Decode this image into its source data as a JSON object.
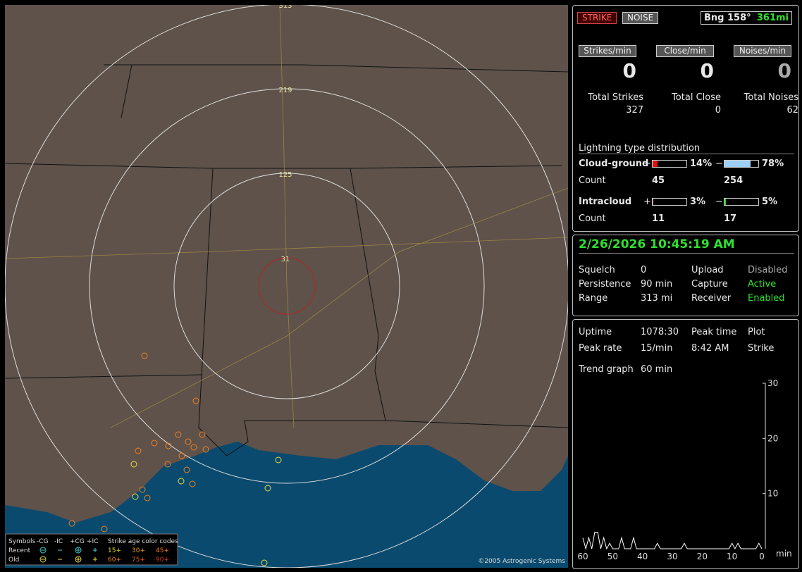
{
  "map": {
    "range_rings": [
      "313",
      "219",
      "125",
      "31"
    ],
    "copyright": "©2005 Astrogenic Systems",
    "legend": {
      "symbols": "Symbols",
      "types": [
        "-CG",
        "-IC",
        "+CG",
        "+IC"
      ],
      "age_title": "Strike age color codes",
      "rows": [
        "Recent",
        "Old"
      ],
      "recent_ages": [
        "15+",
        "30+",
        "45+"
      ],
      "old_ages": [
        "60+",
        "75+",
        "90+"
      ]
    }
  },
  "status": {
    "buttons": [
      "STRIKE",
      "NOISE"
    ],
    "bearing": "Bng 158°",
    "distance": "361mi",
    "rates": [
      {
        "label": "Strikes/min",
        "value": 0
      },
      {
        "label": "Close/min",
        "value": 0
      },
      {
        "label": "Noises/min",
        "value": 0
      }
    ],
    "totals": [
      {
        "label": "Total Strikes",
        "value": 327
      },
      {
        "label": "Total Close",
        "value": 0
      },
      {
        "label": "Total Noises",
        "value": 62
      }
    ],
    "distribution": {
      "title": "Lightning type distribution",
      "count_label": "Count",
      "rows": [
        {
          "name": "Cloud-ground",
          "plus": {
            "sign": "+",
            "percent": 14,
            "percent_label": "14%",
            "count": 45,
            "color": "#e01010"
          },
          "minus": {
            "sign": "−",
            "percent": 78,
            "percent_label": "78%",
            "count": 254,
            "color": "#9cd0f4"
          }
        },
        {
          "name": "Intracloud",
          "plus": {
            "sign": "+",
            "percent": 3,
            "percent_label": "3%",
            "count": 11,
            "color": "#e070a0"
          },
          "minus": {
            "sign": "−",
            "percent": 5,
            "percent_label": "5%",
            "count": 17,
            "color": "#20d020"
          }
        }
      ]
    }
  },
  "settings": {
    "datetime": "2/26/2026 10:45:19 AM",
    "left": [
      {
        "label": "Squelch",
        "value": 0
      },
      {
        "label": "Persistence",
        "value": "90 min"
      },
      {
        "label": "Range",
        "value": "313 mi"
      }
    ],
    "right": [
      {
        "label": "Upload",
        "value": "Disabled"
      },
      {
        "label": "Capture",
        "value": "Active"
      },
      {
        "label": "Receiver",
        "value": "Enabled"
      }
    ]
  },
  "trend": {
    "uptime_label": "Uptime",
    "uptime": "1078:30",
    "peak_time_label": "Peak time",
    "peak_time": "8:42 AM",
    "plot_label": "Plot",
    "plot": "Strike",
    "peak_rate_label": "Peak rate",
    "peak_rate": "15/min",
    "graph_label": "Trend graph",
    "graph_span": "60 min",
    "x_unit": "min",
    "chart": {
      "type": "line",
      "color": "#ffffff",
      "x": [
        60,
        59,
        58,
        57,
        56,
        55,
        54,
        53,
        52,
        51,
        50,
        49,
        48,
        47,
        46,
        45,
        44,
        43,
        42,
        41,
        40,
        39,
        38,
        37,
        36,
        35,
        34,
        33,
        32,
        31,
        30,
        29,
        28,
        27,
        26,
        25,
        24,
        23,
        22,
        21,
        20,
        19,
        18,
        17,
        16,
        15,
        14,
        13,
        12,
        11,
        10,
        9,
        8,
        7,
        6,
        5,
        4,
        3,
        2,
        1,
        0
      ],
      "values": [
        2,
        0,
        2,
        0,
        3,
        3,
        0,
        2,
        0,
        1,
        0,
        0,
        0,
        2,
        0,
        0,
        0,
        2,
        0,
        0,
        0,
        0,
        0,
        0,
        0,
        1,
        0,
        0,
        0,
        0,
        0,
        0,
        0,
        0,
        1,
        0,
        0,
        0,
        0,
        0,
        0,
        0,
        0,
        0,
        0,
        0,
        0,
        0,
        0,
        0,
        1,
        0,
        1,
        0,
        0,
        0,
        0,
        0,
        0,
        1,
        0
      ],
      "xlim": [
        60,
        0
      ],
      "ylim": [
        0,
        30
      ],
      "yticks": [
        10,
        20,
        30
      ],
      "xticks": [
        60,
        50,
        40,
        30,
        20,
        10,
        0
      ]
    }
  }
}
